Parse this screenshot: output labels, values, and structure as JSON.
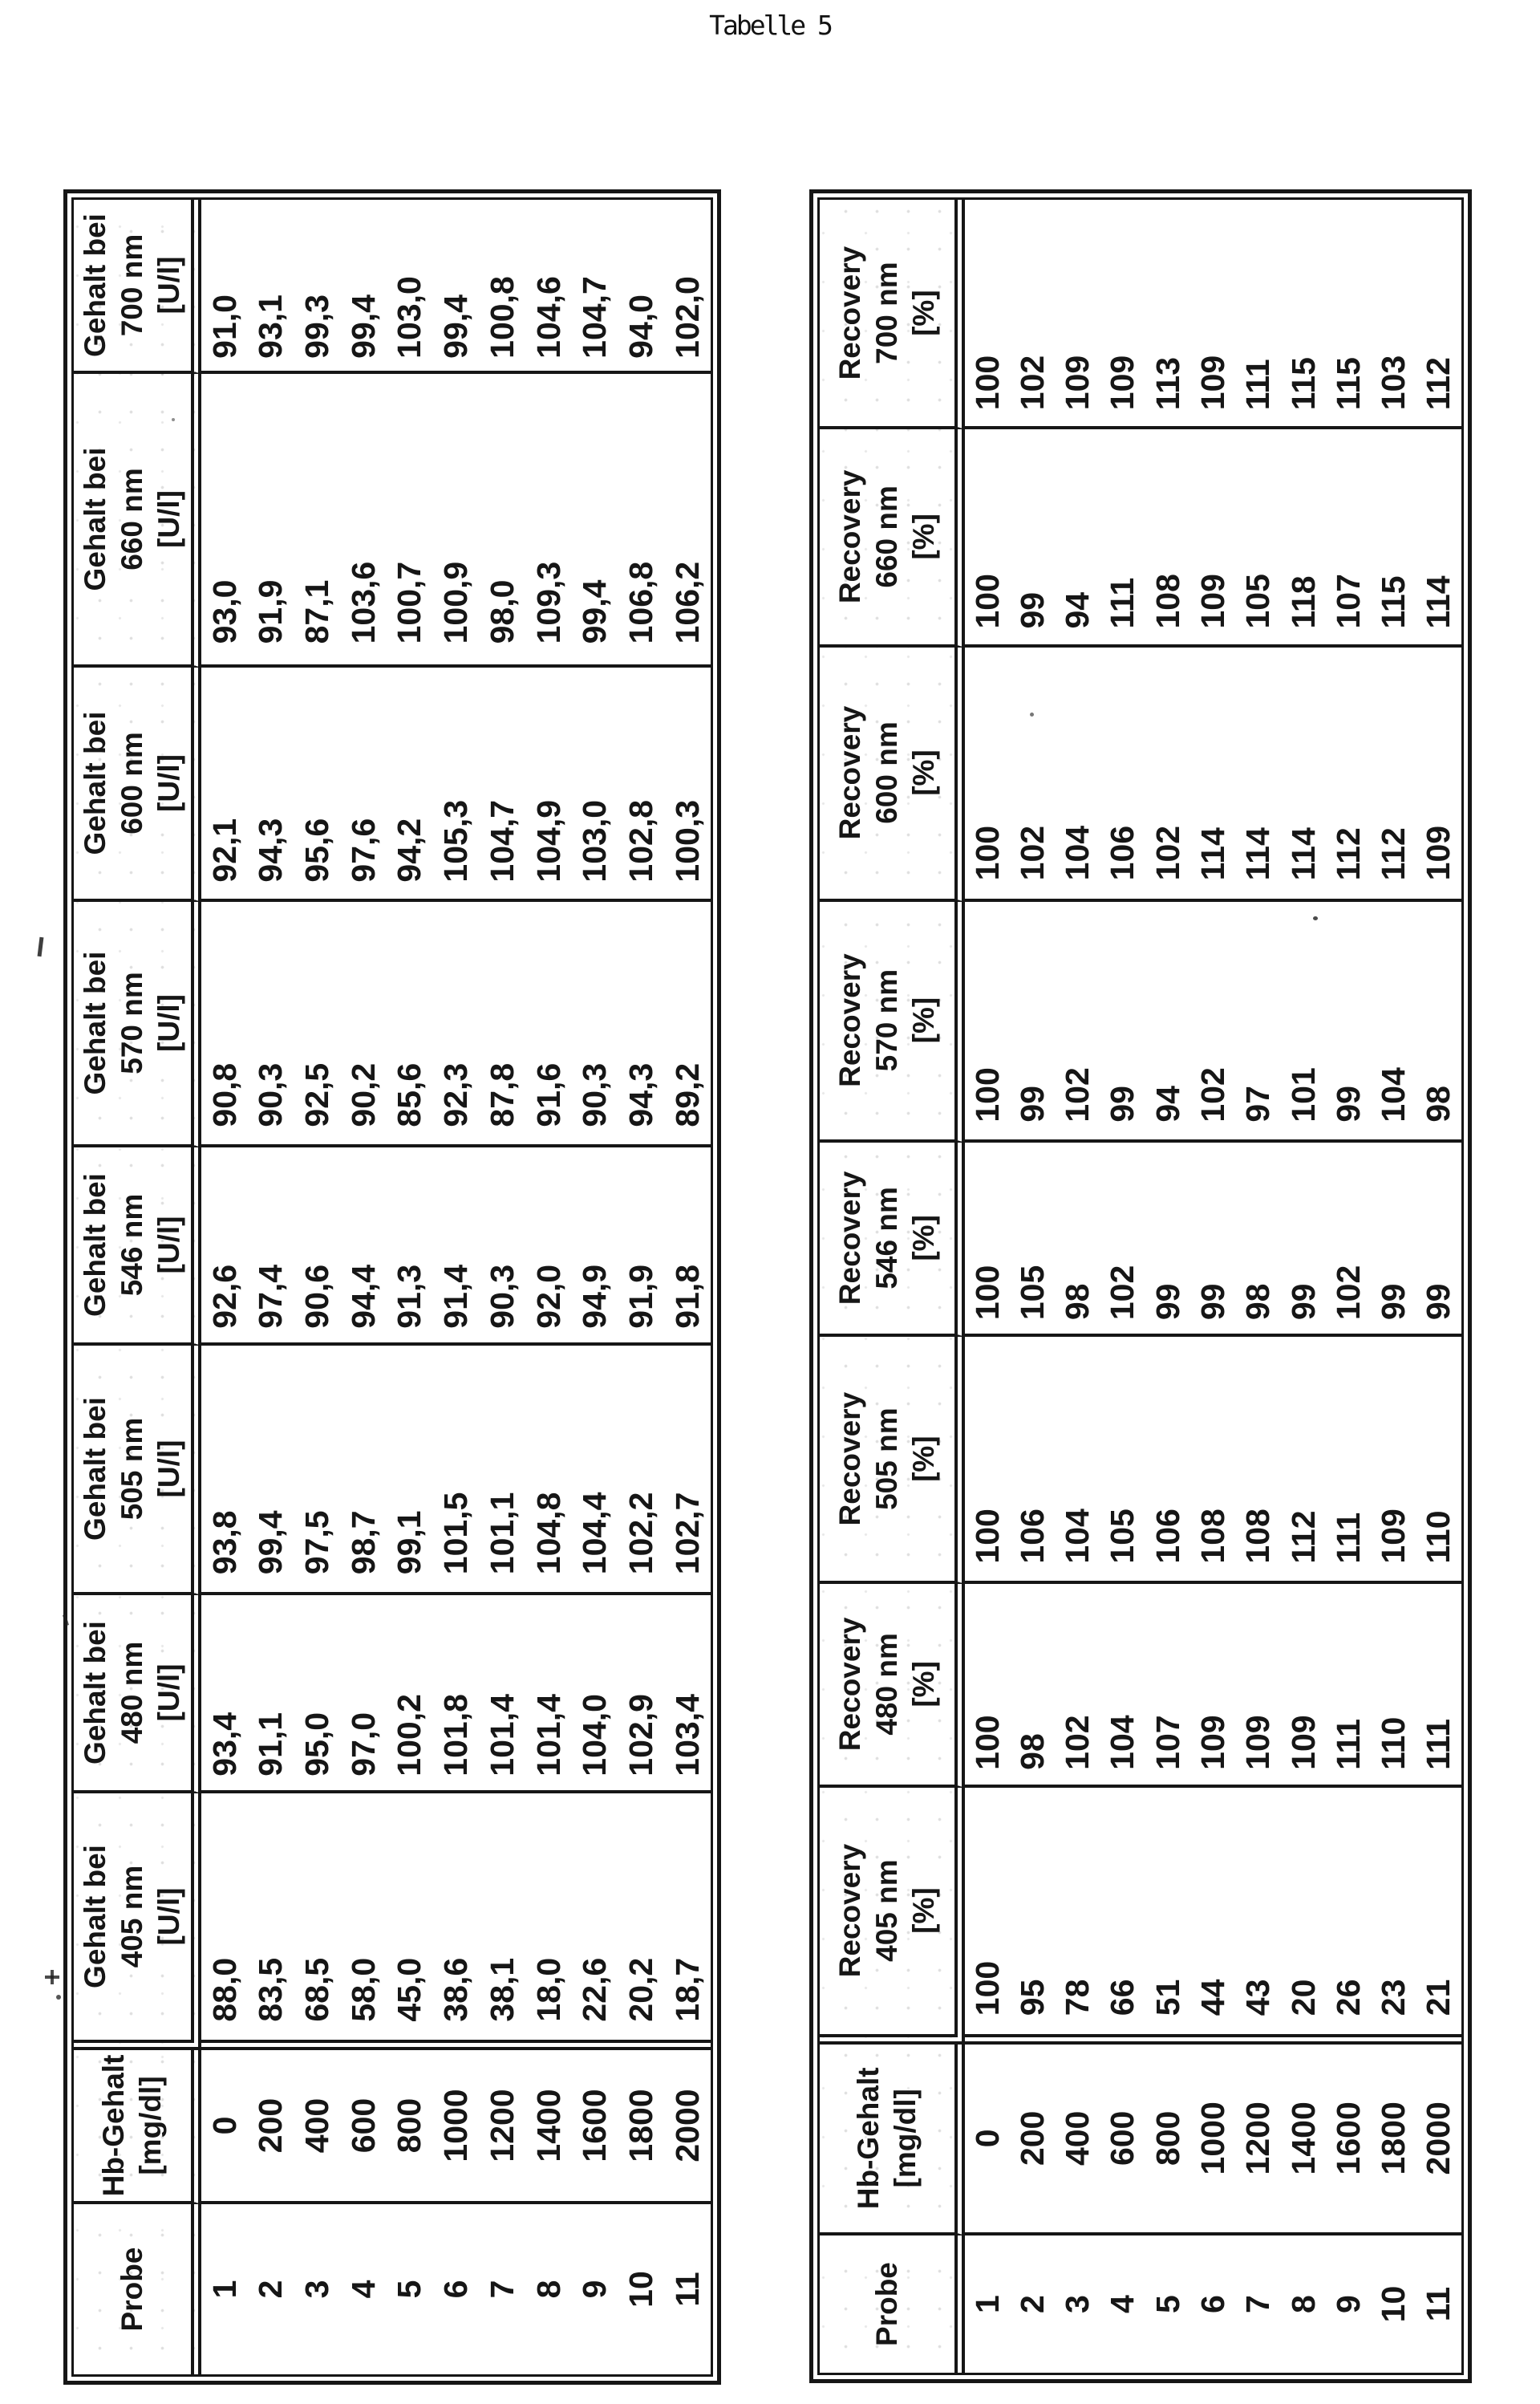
{
  "title": "Tabelle 5",
  "colors": {
    "ink": "#161616",
    "paper": "#ffffff"
  },
  "tables": [
    {
      "id": "gehalt-table",
      "columns": [
        {
          "header": [
            "Probe"
          ],
          "values": [
            "1",
            "2",
            "3",
            "4",
            "5",
            "6",
            "7",
            "8",
            "9",
            "10",
            "11"
          ]
        },
        {
          "header": [
            "Hb-Gehalt",
            "[mg/dl]"
          ],
          "values": [
            "0",
            "200",
            "400",
            "600",
            "800",
            "1000",
            "1200",
            "1400",
            "1600",
            "1800",
            "2000"
          ]
        },
        {
          "header": [
            "Gehalt bei",
            "405 nm",
            "[U/l]"
          ],
          "values": [
            "88,0",
            "83,5",
            "68,5",
            "58,0",
            "45,0",
            "38,6",
            "38,1",
            "18,0",
            "22,6",
            "20,2",
            "18,7"
          ]
        },
        {
          "header": [
            "Gehalt bei",
            "480 nm",
            "[U/l]"
          ],
          "values": [
            "93,4",
            "91,1",
            "95,0",
            "97,0",
            "100,2",
            "101,8",
            "101,4",
            "101,4",
            "104,0",
            "102,9",
            "103,4"
          ]
        },
        {
          "header": [
            "Gehalt bei",
            "505 nm",
            "[U/l]"
          ],
          "values": [
            "93,8",
            "99,4",
            "97,5",
            "98,7",
            "99,1",
            "101,5",
            "101,1",
            "104,8",
            "104,4",
            "102,2",
            "102,7"
          ]
        },
        {
          "header": [
            "Gehalt bei",
            "546 nm",
            "[U/l]"
          ],
          "values": [
            "92,6",
            "97,4",
            "90,6",
            "94,4",
            "91,3",
            "91,4",
            "90,3",
            "92,0",
            "94,9",
            "91,9",
            "91,8"
          ]
        },
        {
          "header": [
            "Gehalt bei",
            "570 nm",
            "[U/l]"
          ],
          "values": [
            "90,8",
            "90,3",
            "92,5",
            "90,2",
            "85,6",
            "92,3",
            "87,8",
            "91,6",
            "90,3",
            "94,3",
            "89,2"
          ]
        },
        {
          "header": [
            "Gehalt bei",
            "600 nm",
            "[U/l]"
          ],
          "values": [
            "92,1",
            "94,3",
            "95,6",
            "97,6",
            "94,2",
            "105,3",
            "104,7",
            "104,9",
            "103,0",
            "102,8",
            "100,3"
          ]
        },
        {
          "header": [
            "Gehalt bei",
            "660 nm",
            "[U/l]"
          ],
          "values": [
            "93,0",
            "91,9",
            "87,1",
            "103,6",
            "100,7",
            "100,9",
            "98,0",
            "109,3",
            "99,4",
            "106,8",
            "106,2"
          ]
        },
        {
          "header": [
            "Gehalt bei",
            "700 nm",
            "[U/l]"
          ],
          "values": [
            "91,0",
            "93,1",
            "99,3",
            "99,4",
            "103,0",
            "99,4",
            "100,8",
            "104,6",
            "104,7",
            "94,0",
            "102,0"
          ]
        }
      ]
    },
    {
      "id": "recovery-table",
      "columns": [
        {
          "header": [
            "Probe"
          ],
          "values": [
            "1",
            "2",
            "3",
            "4",
            "5",
            "6",
            "7",
            "8",
            "9",
            "10",
            "11"
          ]
        },
        {
          "header": [
            "Hb-Gehalt",
            "[mg/dl]"
          ],
          "values": [
            "0",
            "200",
            "400",
            "600",
            "800",
            "1000",
            "1200",
            "1400",
            "1600",
            "1800",
            "2000"
          ]
        },
        {
          "header": [
            "Recovery",
            "405 nm",
            "[%]"
          ],
          "values": [
            "100",
            "95",
            "78",
            "66",
            "51",
            "44",
            "43",
            "20",
            "26",
            "23",
            "21"
          ]
        },
        {
          "header": [
            "Recovery",
            "480 nm",
            "[%]"
          ],
          "values": [
            "100",
            "98",
            "102",
            "104",
            "107",
            "109",
            "109",
            "109",
            "111",
            "110",
            "111"
          ]
        },
        {
          "header": [
            "Recovery",
            "505 nm",
            "[%]"
          ],
          "values": [
            "100",
            "106",
            "104",
            "105",
            "106",
            "108",
            "108",
            "112",
            "111",
            "109",
            "110"
          ]
        },
        {
          "header": [
            "Recovery",
            "546 nm",
            "[%]"
          ],
          "values": [
            "100",
            "105",
            "98",
            "102",
            "99",
            "99",
            "98",
            "99",
            "102",
            "99",
            "99"
          ]
        },
        {
          "header": [
            "Recovery",
            "570 nm",
            "[%]"
          ],
          "values": [
            "100",
            "99",
            "102",
            "99",
            "94",
            "102",
            "97",
            "101",
            "99",
            "104",
            "98"
          ]
        },
        {
          "header": [
            "Recovery",
            "600 nm",
            "[%]"
          ],
          "values": [
            "100",
            "102",
            "104",
            "106",
            "102",
            "114",
            "114",
            "114",
            "112",
            "112",
            "109"
          ]
        },
        {
          "header": [
            "Recovery",
            "660 nm",
            "[%]"
          ],
          "values": [
            "100",
            "99",
            "94",
            "111",
            "108",
            "109",
            "105",
            "118",
            "107",
            "115",
            "114"
          ]
        },
        {
          "header": [
            "Recovery",
            "700 nm",
            "[%]"
          ],
          "values": [
            "100",
            "102",
            "109",
            "109",
            "113",
            "109",
            "111",
            "115",
            "115",
            "103",
            "112"
          ]
        }
      ]
    }
  ]
}
